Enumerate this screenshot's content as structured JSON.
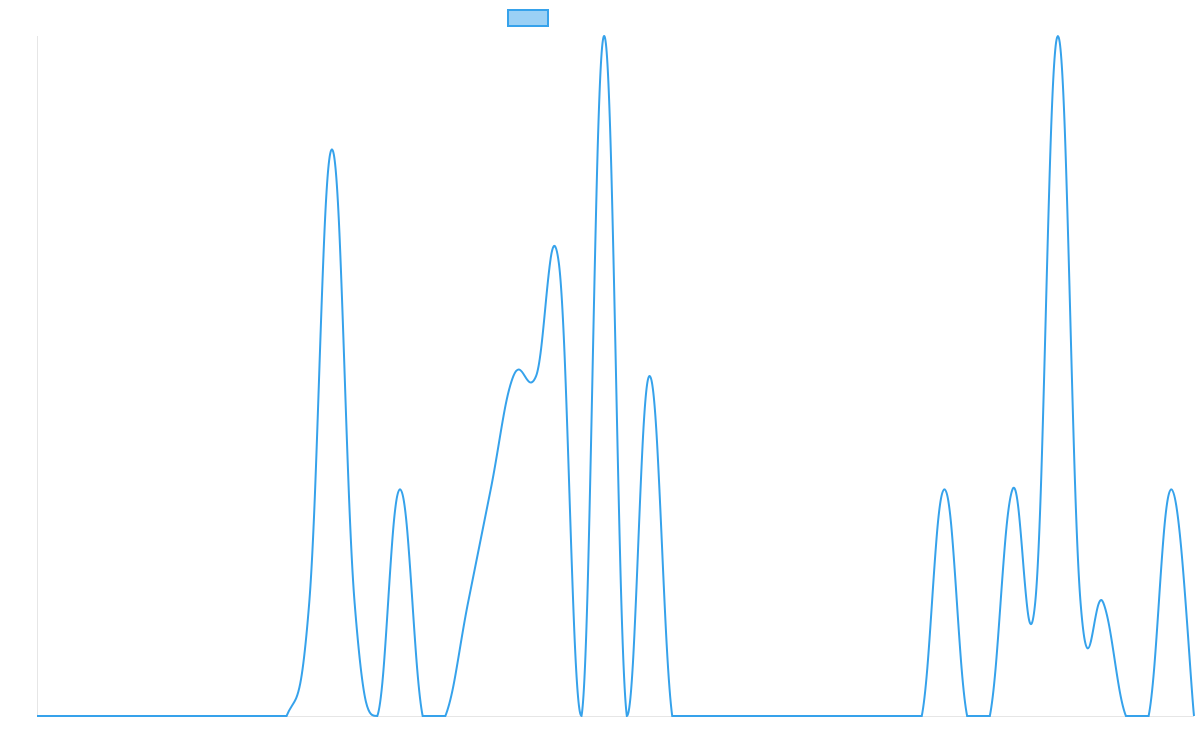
{
  "chart_data": {
    "type": "line",
    "categories": [
      null,
      null,
      null,
      null,
      null,
      null,
      null,
      null,
      null,
      null,
      null,
      null,
      null,
      null,
      null,
      null,
      null,
      null,
      null,
      null,
      null,
      null,
      null,
      null,
      null,
      null,
      null,
      null,
      null,
      null,
      null,
      null,
      null,
      null,
      null,
      null,
      null,
      null,
      null,
      null,
      null,
      null,
      null,
      null,
      null,
      null,
      null,
      null,
      null,
      null,
      null,
      null
    ],
    "series": [
      {
        "color": "#36a2eb",
        "values": [
          0,
          0,
          0,
          0,
          0,
          0,
          0,
          0,
          0,
          0,
          0,
          0,
          1,
          5,
          1,
          0,
          2,
          0,
          0,
          1,
          2,
          3,
          3,
          4,
          0,
          6,
          0,
          3,
          0,
          0,
          0,
          0,
          0,
          0,
          0,
          0,
          0,
          0,
          0,
          0,
          2,
          0,
          0,
          2,
          1,
          6,
          1,
          1,
          0,
          0,
          2,
          0
        ]
      }
    ],
    "ylim": [
      0,
      6
    ]
  }
}
